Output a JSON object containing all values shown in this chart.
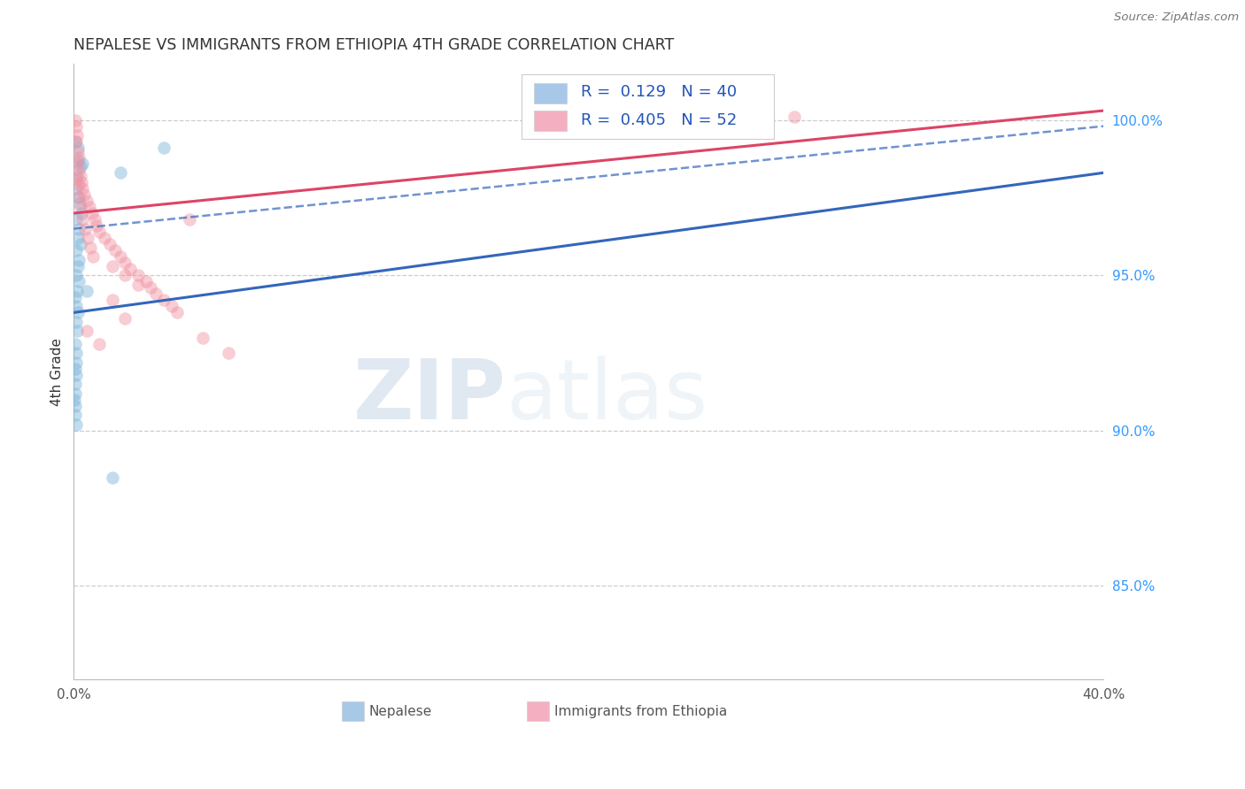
{
  "title": "NEPALESE VS IMMIGRANTS FROM ETHIOPIA 4TH GRADE CORRELATION CHART",
  "source": "Source: ZipAtlas.com",
  "ylabel": "4th Grade",
  "watermark_zip": "ZIP",
  "watermark_atlas": "atlas",
  "legend_blue_r": "R =  0.129",
  "legend_blue_n": "N = 40",
  "legend_pink_r": "R =  0.405",
  "legend_pink_n": "N = 52",
  "blue_scatter": [
    [
      0.05,
      99.3
    ],
    [
      0.15,
      99.1
    ],
    [
      0.15,
      98.7
    ],
    [
      0.25,
      98.5
    ],
    [
      0.35,
      98.6
    ],
    [
      0.12,
      98.2
    ],
    [
      0.08,
      97.8
    ],
    [
      0.18,
      97.5
    ],
    [
      0.22,
      97.3
    ],
    [
      0.3,
      97.0
    ],
    [
      0.1,
      96.8
    ],
    [
      0.2,
      96.5
    ],
    [
      0.15,
      96.2
    ],
    [
      0.25,
      96.0
    ],
    [
      0.1,
      95.8
    ],
    [
      0.2,
      95.5
    ],
    [
      0.15,
      95.3
    ],
    [
      0.08,
      95.0
    ],
    [
      0.18,
      94.8
    ],
    [
      0.12,
      94.5
    ],
    [
      0.05,
      94.3
    ],
    [
      0.1,
      94.0
    ],
    [
      0.15,
      93.8
    ],
    [
      0.08,
      93.5
    ],
    [
      0.12,
      93.2
    ],
    [
      0.05,
      92.8
    ],
    [
      0.08,
      92.5
    ],
    [
      0.1,
      92.2
    ],
    [
      0.06,
      92.0
    ],
    [
      0.08,
      91.8
    ],
    [
      0.05,
      91.5
    ],
    [
      0.06,
      91.2
    ],
    [
      0.04,
      91.0
    ],
    [
      0.05,
      90.8
    ],
    [
      0.06,
      90.5
    ],
    [
      0.08,
      90.2
    ],
    [
      1.8,
      98.3
    ],
    [
      3.5,
      99.1
    ],
    [
      0.5,
      94.5
    ],
    [
      1.5,
      88.5
    ]
  ],
  "pink_scatter": [
    [
      0.05,
      100.0
    ],
    [
      0.1,
      99.8
    ],
    [
      0.12,
      99.5
    ],
    [
      0.08,
      99.3
    ],
    [
      0.15,
      99.0
    ],
    [
      0.2,
      98.8
    ],
    [
      0.12,
      98.6
    ],
    [
      0.18,
      98.4
    ],
    [
      0.25,
      98.2
    ],
    [
      0.3,
      98.0
    ],
    [
      0.35,
      97.8
    ],
    [
      0.4,
      97.6
    ],
    [
      0.5,
      97.4
    ],
    [
      0.6,
      97.2
    ],
    [
      0.7,
      97.0
    ],
    [
      0.8,
      96.8
    ],
    [
      0.9,
      96.6
    ],
    [
      1.0,
      96.4
    ],
    [
      1.2,
      96.2
    ],
    [
      1.4,
      96.0
    ],
    [
      1.6,
      95.8
    ],
    [
      1.8,
      95.6
    ],
    [
      2.0,
      95.4
    ],
    [
      2.2,
      95.2
    ],
    [
      2.5,
      95.0
    ],
    [
      2.8,
      94.8
    ],
    [
      3.0,
      94.6
    ],
    [
      3.2,
      94.4
    ],
    [
      3.5,
      94.2
    ],
    [
      3.8,
      94.0
    ],
    [
      0.15,
      97.5
    ],
    [
      0.25,
      97.2
    ],
    [
      0.35,
      96.8
    ],
    [
      0.45,
      96.5
    ],
    [
      0.55,
      96.2
    ],
    [
      0.65,
      95.9
    ],
    [
      0.75,
      95.6
    ],
    [
      1.5,
      95.3
    ],
    [
      2.0,
      95.0
    ],
    [
      2.5,
      94.7
    ],
    [
      4.0,
      93.8
    ],
    [
      5.0,
      93.0
    ],
    [
      6.0,
      92.5
    ],
    [
      0.5,
      93.2
    ],
    [
      1.0,
      92.8
    ],
    [
      22.0,
      99.9
    ],
    [
      28.0,
      100.1
    ],
    [
      4.5,
      96.8
    ],
    [
      0.1,
      98.1
    ],
    [
      0.2,
      97.9
    ],
    [
      1.5,
      94.2
    ],
    [
      2.0,
      93.6
    ]
  ],
  "blue_line": [
    [
      0.0,
      93.8
    ],
    [
      40.0,
      98.3
    ]
  ],
  "pink_line": [
    [
      0.0,
      97.0
    ],
    [
      40.0,
      100.3
    ]
  ],
  "blue_dashed_line": [
    [
      0.0,
      96.5
    ],
    [
      40.0,
      99.8
    ]
  ],
  "xlim": [
    0.0,
    40.0
  ],
  "ylim": [
    82.0,
    101.8
  ],
  "yticks": [
    85.0,
    90.0,
    95.0,
    100.0
  ],
  "ytick_labels": [
    "85.0%",
    "90.0%",
    "95.0%",
    "100.0%"
  ],
  "background_color": "#ffffff",
  "grid_color": "#cccccc",
  "blue_color": "#7ab3d9",
  "pink_color": "#f090a0",
  "blue_line_color": "#3366bb",
  "pink_line_color": "#dd4466",
  "right_tick_color": "#3399ff",
  "scatter_alpha": 0.45,
  "scatter_size": 110,
  "figsize": [
    14.06,
    8.92
  ],
  "dpi": 100
}
